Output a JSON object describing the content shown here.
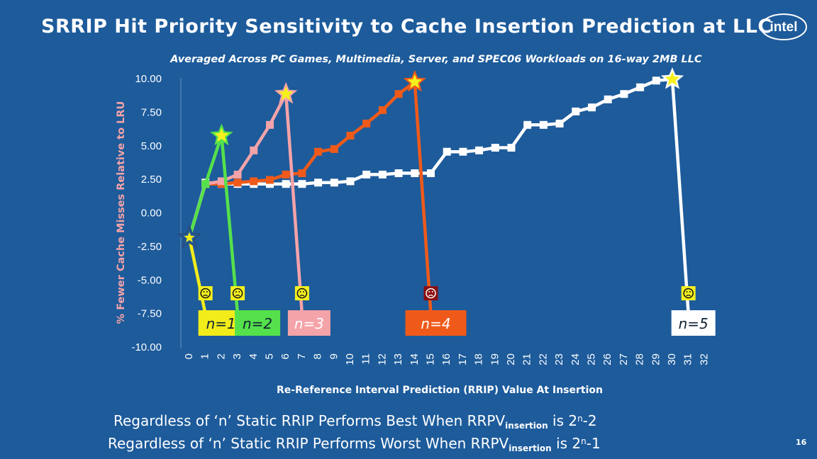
{
  "title": "SRRIP Hit Priority Sensitivity to Cache Insertion Prediction at LLC",
  "logo_text": "intel",
  "footer": {
    "line1": {
      "prefix": "Regardless of ‘n’ Static RRIP Performs Best When RRPV",
      "sub": "insertion",
      "mid": " is 2",
      "sup": "n",
      "suffix": "-2"
    },
    "line2": {
      "prefix": "Regardless of ‘n’ Static RRIP Performs Worst When RRPV",
      "sub": "insertion",
      "mid": " is 2",
      "sup": "n",
      "suffix": "-1"
    }
  },
  "page_number": "16",
  "colors": {
    "background": "#1d5b9b",
    "n1": "#f2ec1a",
    "n2": "#55e14b",
    "n3": "#f4a3a8",
    "n4": "#ef5a1a",
    "n5": "#ffffff",
    "best_star": "#f5f01e",
    "worst_face_bg": "#f5f01e"
  },
  "chart_data": {
    "type": "line",
    "title": "Averaged Across PC Games, Multimedia, Server, and SPEC06 Workloads on 16-way 2MB LLC",
    "xlabel": "Re-Reference Interval Prediction (RRIP) Value At Insertion",
    "ylabel": "% Fewer Cache Misses Relative to LRU",
    "ylim": [
      -10,
      10
    ],
    "yticks": [
      "10.00",
      "7.50",
      "5.00",
      "2.50",
      "0.00",
      "-2.50",
      "-5.00",
      "-7.50",
      "-10.00"
    ],
    "xticks": [
      "0",
      "1",
      "2",
      "3",
      "4",
      "5",
      "6",
      "7",
      "8",
      "9",
      "10",
      "11",
      "12",
      "13",
      "14",
      "15",
      "16",
      "17",
      "18",
      "19",
      "20",
      "21",
      "22",
      "23",
      "24",
      "25",
      "26",
      "27",
      "28",
      "29",
      "30",
      "31",
      "32"
    ],
    "series": [
      {
        "name": "n=1",
        "color": "#f2ec1a",
        "x": [
          0,
          1
        ],
        "values": [
          -1.9,
          -7.6
        ],
        "best_x": 0,
        "worst_x": 1
      },
      {
        "name": "n=2",
        "color": "#55e14b",
        "x": [
          0,
          1,
          2,
          3
        ],
        "values": [
          -1.9,
          2.1,
          5.7,
          -7.6
        ],
        "best_x": 2,
        "worst_x": 3
      },
      {
        "name": "n=3",
        "color": "#f4a3a8",
        "x": [
          0,
          1,
          2,
          3,
          4,
          5,
          6,
          7
        ],
        "values": [
          -1.9,
          2.1,
          2.3,
          2.8,
          4.6,
          6.5,
          8.8,
          -7.6
        ],
        "best_x": 6,
        "worst_x": 7
      },
      {
        "name": "n=4",
        "color": "#ef5a1a",
        "x": [
          0,
          1,
          2,
          3,
          4,
          5,
          6,
          7,
          8,
          9,
          10,
          11,
          12,
          13,
          14,
          15
        ],
        "values": [
          -1.9,
          2.1,
          2.1,
          2.2,
          2.3,
          2.4,
          2.8,
          2.9,
          4.5,
          4.7,
          5.7,
          6.6,
          7.6,
          8.8,
          9.7,
          -7.6
        ],
        "best_x": 14,
        "worst_x": 15
      },
      {
        "name": "n=5",
        "color": "#ffffff",
        "x": [
          0,
          1,
          2,
          3,
          4,
          5,
          6,
          7,
          8,
          9,
          10,
          11,
          12,
          13,
          14,
          15,
          16,
          17,
          18,
          19,
          20,
          21,
          22,
          23,
          24,
          25,
          26,
          27,
          28,
          29,
          30,
          31
        ],
        "values": [
          -1.9,
          2.2,
          2.1,
          2.1,
          2.1,
          2.1,
          2.1,
          2.1,
          2.2,
          2.2,
          2.3,
          2.8,
          2.8,
          2.9,
          2.9,
          2.9,
          4.5,
          4.5,
          4.6,
          4.8,
          4.8,
          6.5,
          6.5,
          6.6,
          7.5,
          7.8,
          8.4,
          8.8,
          9.3,
          9.8,
          9.9,
          -7.6
        ],
        "best_x": 30,
        "worst_x": 31
      }
    ]
  }
}
